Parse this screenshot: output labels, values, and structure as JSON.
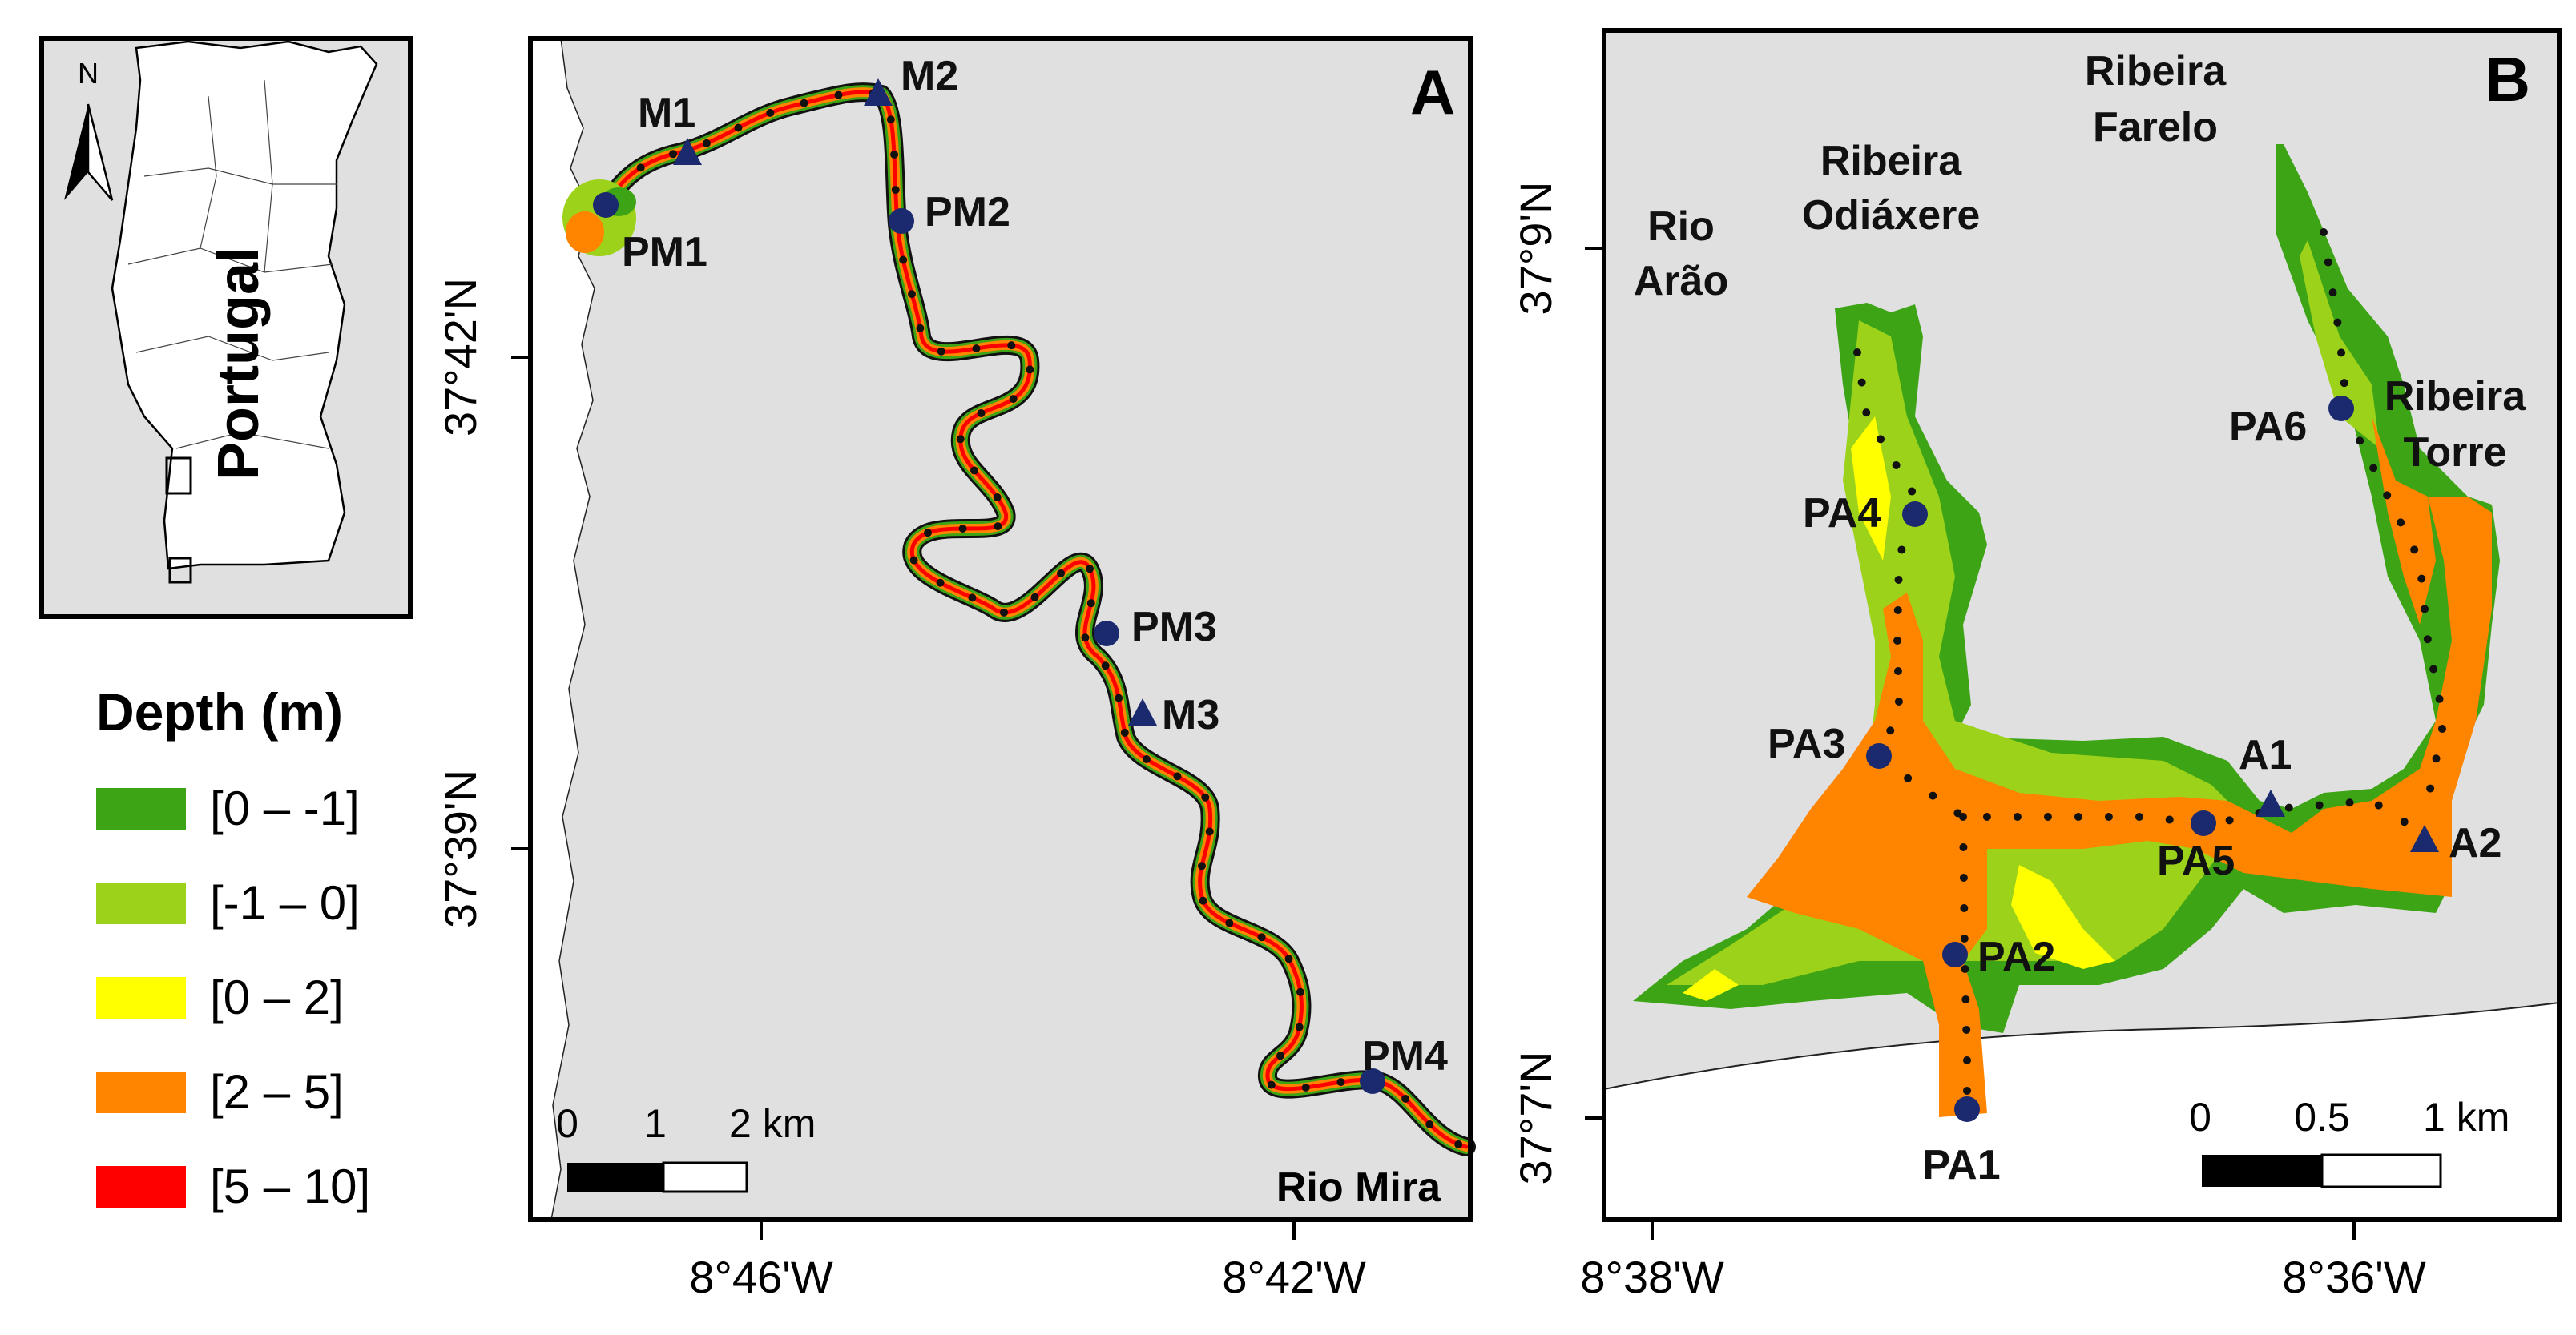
{
  "colors": {
    "land": "#e0e0e0",
    "water_shallow_neg": "#3da416",
    "water_lightgreen": "#9dd21a",
    "water_yellow": "#ffff00",
    "water_orange": "#ff8400",
    "water_red": "#ff0000",
    "station_circle": "#1b2a6e",
    "station_triangle": "#1b2a6e",
    "track_dots": "#111111",
    "frame": "#000000"
  },
  "inset": {
    "north_label": "N",
    "country_label": "Portugal"
  },
  "legend": {
    "title": "Depth (m)",
    "items": [
      {
        "label": "[0 – -1]",
        "color": "#3da416"
      },
      {
        "label": "[-1 – 0]",
        "color": "#9dd21a"
      },
      {
        "label": "[0 – 2]",
        "color": "#ffff00"
      },
      {
        "label": "[2 – 5]",
        "color": "#ff8400"
      },
      {
        "label": "[5 – 10]",
        "color": "#ff0000"
      }
    ]
  },
  "panel_a": {
    "letter": "A",
    "river_label": "Rio Mira",
    "x_ticks": [
      "8°46'W",
      "8°42'W"
    ],
    "y_ticks": [
      "37°42'N",
      "37°39'N"
    ],
    "scale": {
      "labels": [
        "0",
        "1",
        "2 km"
      ]
    },
    "stations": {
      "M1": "M1",
      "M2": "M2",
      "M3": "M3",
      "PM1": "PM1",
      "PM2": "PM2",
      "PM3": "PM3",
      "PM4": "PM4"
    }
  },
  "panel_b": {
    "letter": "B",
    "place_labels": {
      "rio_arao_1": "Rio",
      "rio_arao_2": "Arão",
      "odiaxere_1": "Ribeira",
      "odiaxere_2": "Odiáxere",
      "farelo_1": "Ribeira",
      "farelo_2": "Farelo",
      "torre_1": "Ribeira",
      "torre_2": "Torre"
    },
    "x_ticks": [
      "8°38'W",
      "8°36'W"
    ],
    "y_ticks": [
      "37°9'N",
      "37°7'N"
    ],
    "scale": {
      "labels": [
        "0",
        "0.5",
        "1 km"
      ]
    },
    "stations": {
      "A1": "A1",
      "A2": "A2",
      "PA1": "PA1",
      "PA2": "PA2",
      "PA3": "PA3",
      "PA4": "PA4",
      "PA5": "PA5",
      "PA6": "PA6"
    }
  }
}
